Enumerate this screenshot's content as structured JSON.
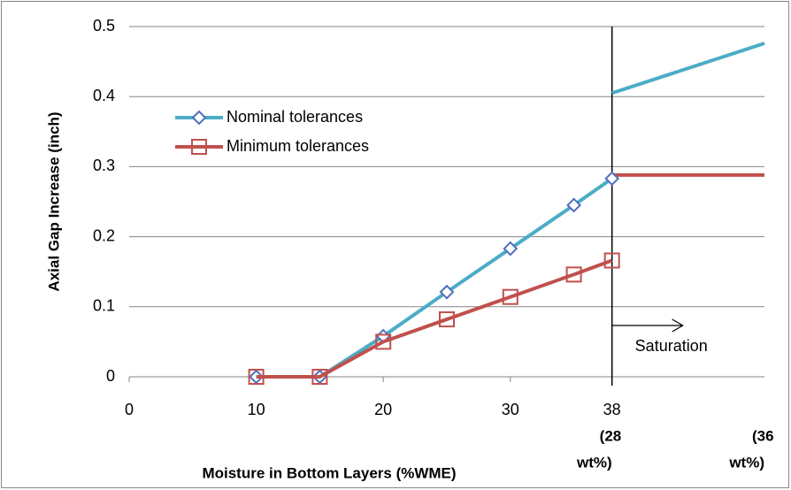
{
  "chart_data": {
    "type": "line",
    "x_label": "Moisture in Bottom Layers (%WME)",
    "y_label": "Axial Gap Increase (inch)",
    "xlim": [
      0,
      50
    ],
    "xticks": [
      0,
      10,
      20,
      30,
      38
    ],
    "ylim": [
      0,
      0.5
    ],
    "yticks": [
      0,
      0.1,
      0.2,
      0.3,
      0.4,
      0.5
    ],
    "grid": true,
    "legend": "upper left",
    "series": [
      {
        "name": "Nominal tolerances",
        "color": "#4bacc6",
        "marker": "diamond",
        "marker_color": "#4f6fbf",
        "x": [
          10,
          15,
          20,
          25,
          30,
          35,
          38
        ],
        "values": [
          0,
          0,
          0.058,
          0.121,
          0.183,
          0.245,
          0.283
        ]
      },
      {
        "name": "Minimum tolerances",
        "color": "#c0504d",
        "marker": "square",
        "marker_color": "#c0504d",
        "x": [
          10,
          15,
          20,
          25,
          30,
          35,
          38
        ],
        "values": [
          0,
          0,
          0.05,
          0.082,
          0.114,
          0.146,
          0.166
        ]
      }
    ],
    "extensions": [
      {
        "color": "#4bacc6",
        "x": [
          38,
          50
        ],
        "values": [
          0.405,
          0.476
        ]
      },
      {
        "color": "#c0504d",
        "x": [
          38,
          50
        ],
        "values": [
          0.288,
          0.288
        ]
      }
    ],
    "saturation_x": 38,
    "saturation_label": "Saturation",
    "wt_labels": [
      {
        "x": 38,
        "lines": [
          "(28",
          "wt%)"
        ]
      },
      {
        "x": 50,
        "lines": [
          "(36",
          "wt%)"
        ]
      }
    ]
  }
}
